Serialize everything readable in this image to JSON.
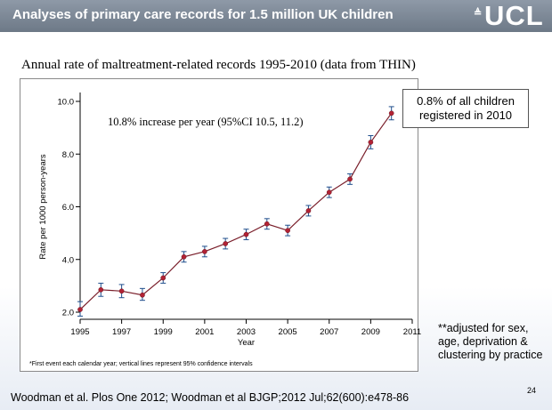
{
  "header": {
    "title": "Analyses of primary care records for 1.5 million UK children",
    "logo_text": "UCL",
    "logo_mark": "≜"
  },
  "subtitle": "Annual rate of maltreatment-related records 1995-2010 (data from THIN)",
  "callout": {
    "line1": "0.8% of all children",
    "line2": "registered in 2010"
  },
  "side_note": "**adjusted for sex, age, deprivation & clustering by practice",
  "citation": "Woodman et al. Plos One 2012; Woodman et al BJGP;2012 Jul;62(600):e478-86",
  "slide_number": "24",
  "colors": {
    "marker": "#b22234",
    "line": "#7a1f2b",
    "error_bar": "#1f4e8c",
    "header": "#7b8694"
  },
  "chart_data": {
    "type": "line",
    "title": "",
    "xlabel": "Year",
    "ylabel": "Rate per 1000 person-years",
    "xlim": [
      1995,
      2011
    ],
    "ylim": [
      2.0,
      10.0
    ],
    "x_ticks": [
      1995,
      1997,
      1999,
      2001,
      2003,
      2005,
      2007,
      2009,
      2011
    ],
    "y_ticks": [
      2.0,
      4.0,
      6.0,
      8.0,
      10.0
    ],
    "y_tick_labels": [
      "2.0",
      "4.0",
      "6.0",
      "8.0",
      "10.0"
    ],
    "annotation": "10.8% increase per year (95%CI 10.5, 11.2)",
    "footnote": "*First event each calendar year; vertical lines represent 95% confidence intervals",
    "grid": false,
    "series": [
      {
        "x": [
          1995,
          1996,
          1997,
          1998,
          1999,
          2000,
          2001,
          2002,
          2003,
          2004,
          2005,
          2006,
          2007,
          2008,
          2009,
          2010
        ],
        "values": [
          2.1,
          2.85,
          2.8,
          2.65,
          3.3,
          4.1,
          4.3,
          4.6,
          4.95,
          5.35,
          5.1,
          5.85,
          6.55,
          7.05,
          8.45,
          9.55
        ],
        "ci_low": [
          1.85,
          2.6,
          2.55,
          2.45,
          3.1,
          3.9,
          4.1,
          4.4,
          4.75,
          5.15,
          4.9,
          5.65,
          6.35,
          6.85,
          8.2,
          9.3
        ],
        "ci_high": [
          2.4,
          3.1,
          3.05,
          2.9,
          3.5,
          4.3,
          4.5,
          4.8,
          5.15,
          5.55,
          5.3,
          6.05,
          6.75,
          7.25,
          8.7,
          9.8
        ]
      }
    ]
  }
}
